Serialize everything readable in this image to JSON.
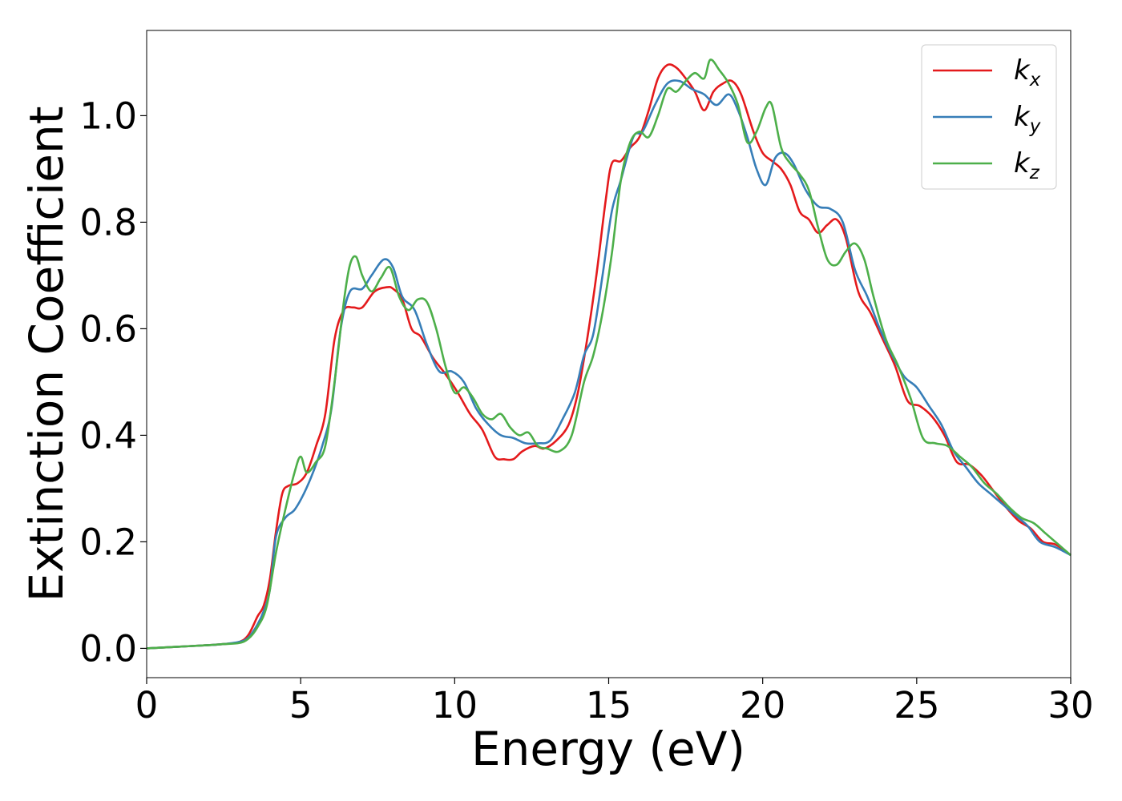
{
  "chart_data": {
    "type": "line",
    "title": "",
    "xlabel": "Energy (eV)",
    "ylabel": "Extinction Coefficient",
    "xlim": [
      0,
      30
    ],
    "ylim": [
      -0.055,
      1.16
    ],
    "xticks": [
      0,
      5,
      10,
      15,
      20,
      25,
      30
    ],
    "xtick_labels": [
      "0",
      "5",
      "10",
      "15",
      "20",
      "25",
      "30"
    ],
    "yticks": [
      0.0,
      0.2,
      0.4,
      0.6,
      0.8,
      1.0
    ],
    "ytick_labels": [
      "0.0",
      "0.2",
      "0.4",
      "0.6",
      "0.8",
      "1.0"
    ],
    "grid": false,
    "legend_position": "top-right",
    "series": [
      {
        "name": "k_x",
        "base": "k",
        "subscript": "x",
        "color": "#e41a1c",
        "x": [
          0,
          1,
          2,
          2.5,
          3,
          3.3,
          3.6,
          3.8,
          4.0,
          4.2,
          4.4,
          4.6,
          4.9,
          5.2,
          5.5,
          5.8,
          6.1,
          6.4,
          6.7,
          7.0,
          7.4,
          7.8,
          8.0,
          8.3,
          8.6,
          8.9,
          9.3,
          9.7,
          10.1,
          10.5,
          10.9,
          11.3,
          11.6,
          11.9,
          12.2,
          12.6,
          12.9,
          13.3,
          13.7,
          14.0,
          14.3,
          14.6,
          14.9,
          15.1,
          15.4,
          15.7,
          16.0,
          16.3,
          16.6,
          16.9,
          17.2,
          17.5,
          17.8,
          18.1,
          18.4,
          18.7,
          19.0,
          19.3,
          19.7,
          20.0,
          20.3,
          20.6,
          20.9,
          21.2,
          21.5,
          21.8,
          22.1,
          22.4,
          22.7,
          23.1,
          23.5,
          23.9,
          24.3,
          24.7,
          25.1,
          25.5,
          25.9,
          26.3,
          26.7,
          27.1,
          27.5,
          27.9,
          28.3,
          28.7,
          29.1,
          29.5,
          30
        ],
        "values": [
          0,
          0.003,
          0.006,
          0.008,
          0.012,
          0.025,
          0.06,
          0.08,
          0.13,
          0.22,
          0.29,
          0.305,
          0.31,
          0.33,
          0.38,
          0.44,
          0.58,
          0.635,
          0.64,
          0.64,
          0.67,
          0.678,
          0.675,
          0.655,
          0.6,
          0.585,
          0.545,
          0.515,
          0.48,
          0.44,
          0.41,
          0.36,
          0.355,
          0.355,
          0.37,
          0.38,
          0.375,
          0.39,
          0.42,
          0.48,
          0.58,
          0.7,
          0.84,
          0.91,
          0.915,
          0.94,
          0.96,
          1.01,
          1.07,
          1.095,
          1.09,
          1.07,
          1.045,
          1.01,
          1.045,
          1.06,
          1.065,
          1.04,
          0.97,
          0.93,
          0.915,
          0.9,
          0.87,
          0.82,
          0.805,
          0.78,
          0.795,
          0.805,
          0.77,
          0.67,
          0.63,
          0.58,
          0.53,
          0.465,
          0.455,
          0.435,
          0.4,
          0.35,
          0.345,
          0.325,
          0.295,
          0.265,
          0.24,
          0.225,
          0.2,
          0.195,
          0.175
        ]
      },
      {
        "name": "k_y",
        "base": "k",
        "subscript": "y",
        "color": "#377eb8",
        "x": [
          0,
          1,
          2,
          2.5,
          3,
          3.3,
          3.6,
          3.8,
          4.0,
          4.2,
          4.5,
          4.8,
          5.1,
          5.4,
          5.7,
          6.0,
          6.3,
          6.6,
          7.0,
          7.3,
          7.7,
          8.0,
          8.3,
          8.7,
          9.1,
          9.5,
          9.9,
          10.3,
          10.7,
          11.1,
          11.5,
          11.9,
          12.3,
          12.7,
          13.1,
          13.5,
          13.9,
          14.2,
          14.5,
          14.8,
          15.1,
          15.4,
          15.8,
          16.1,
          16.5,
          16.9,
          17.3,
          17.7,
          18.1,
          18.5,
          18.9,
          19.2,
          19.5,
          19.8,
          20.1,
          20.4,
          20.7,
          21.0,
          21.4,
          21.8,
          22.2,
          22.6,
          23.0,
          23.4,
          23.8,
          24.2,
          24.6,
          25.0,
          25.4,
          25.8,
          26.2,
          26.6,
          27.0,
          27.4,
          27.8,
          28.2,
          28.6,
          29.0,
          29.5,
          30
        ],
        "values": [
          0,
          0.003,
          0.006,
          0.008,
          0.012,
          0.02,
          0.045,
          0.07,
          0.11,
          0.21,
          0.245,
          0.26,
          0.29,
          0.33,
          0.38,
          0.45,
          0.6,
          0.67,
          0.675,
          0.7,
          0.73,
          0.715,
          0.66,
          0.635,
          0.57,
          0.52,
          0.52,
          0.5,
          0.45,
          0.42,
          0.4,
          0.395,
          0.385,
          0.385,
          0.39,
          0.43,
          0.48,
          0.55,
          0.59,
          0.7,
          0.82,
          0.88,
          0.96,
          0.97,
          1.02,
          1.06,
          1.065,
          1.05,
          1.04,
          1.02,
          1.04,
          1.01,
          0.96,
          0.9,
          0.87,
          0.92,
          0.93,
          0.91,
          0.86,
          0.83,
          0.825,
          0.8,
          0.71,
          0.66,
          0.6,
          0.55,
          0.51,
          0.49,
          0.455,
          0.42,
          0.37,
          0.34,
          0.31,
          0.29,
          0.27,
          0.25,
          0.23,
          0.2,
          0.19,
          0.175
        ]
      },
      {
        "name": "k_z",
        "base": "k",
        "subscript": "z",
        "color": "#4daf4a",
        "x": [
          0,
          1,
          2,
          2.5,
          3,
          3.3,
          3.6,
          3.9,
          4.2,
          4.5,
          4.8,
          5.0,
          5.2,
          5.5,
          5.8,
          6.1,
          6.4,
          6.6,
          6.8,
          7.0,
          7.3,
          7.6,
          7.9,
          8.2,
          8.5,
          8.8,
          9.1,
          9.4,
          9.7,
          10.0,
          10.3,
          10.6,
          10.9,
          11.2,
          11.5,
          11.8,
          12.1,
          12.4,
          12.7,
          13.0,
          13.4,
          13.8,
          14.2,
          14.5,
          14.8,
          15.1,
          15.4,
          15.7,
          16.0,
          16.3,
          16.6,
          16.9,
          17.2,
          17.5,
          17.8,
          18.1,
          18.3,
          18.6,
          18.9,
          19.2,
          19.5,
          19.8,
          20.1,
          20.3,
          20.6,
          20.9,
          21.2,
          21.5,
          21.8,
          22.1,
          22.4,
          22.7,
          23.0,
          23.3,
          23.6,
          24.0,
          24.4,
          24.8,
          25.2,
          25.6,
          26.0,
          26.4,
          26.8,
          27.2,
          27.6,
          28.0,
          28.4,
          28.8,
          29.2,
          29.6,
          30
        ],
        "values": [
          0,
          0.003,
          0.006,
          0.008,
          0.01,
          0.018,
          0.04,
          0.08,
          0.18,
          0.26,
          0.33,
          0.36,
          0.33,
          0.35,
          0.38,
          0.5,
          0.65,
          0.72,
          0.735,
          0.7,
          0.67,
          0.695,
          0.715,
          0.66,
          0.635,
          0.655,
          0.65,
          0.6,
          0.53,
          0.48,
          0.49,
          0.47,
          0.44,
          0.43,
          0.44,
          0.415,
          0.4,
          0.405,
          0.38,
          0.375,
          0.37,
          0.4,
          0.5,
          0.55,
          0.63,
          0.74,
          0.88,
          0.95,
          0.97,
          0.96,
          1.0,
          1.05,
          1.045,
          1.065,
          1.08,
          1.07,
          1.105,
          1.085,
          1.06,
          1.02,
          0.95,
          0.97,
          1.015,
          1.02,
          0.94,
          0.91,
          0.89,
          0.86,
          0.79,
          0.73,
          0.72,
          0.745,
          0.76,
          0.73,
          0.66,
          0.58,
          0.53,
          0.47,
          0.395,
          0.385,
          0.38,
          0.36,
          0.34,
          0.31,
          0.29,
          0.265,
          0.245,
          0.235,
          0.215,
          0.195,
          0.175
        ]
      }
    ]
  }
}
